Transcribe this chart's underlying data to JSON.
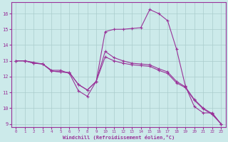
{
  "xlabel": "Windchill (Refroidissement éolien,°C)",
  "xlim": [
    -0.5,
    23.5
  ],
  "ylim": [
    8.8,
    16.7
  ],
  "yticks": [
    9,
    10,
    11,
    12,
    13,
    14,
    15,
    16
  ],
  "xticks": [
    0,
    1,
    2,
    3,
    4,
    5,
    6,
    7,
    8,
    9,
    10,
    11,
    12,
    13,
    14,
    15,
    16,
    17,
    18,
    19,
    20,
    21,
    22,
    23
  ],
  "background_color": "#cceaea",
  "line_color": "#993399",
  "grid_color": "#aacccc",
  "curve1_x": [
    0,
    1,
    2,
    3,
    4,
    5,
    6,
    7,
    8,
    9,
    10,
    11,
    12,
    13,
    14,
    15,
    16,
    17,
    18,
    19,
    20,
    21,
    22,
    23
  ],
  "curve1_y": [
    13.0,
    13.0,
    12.9,
    12.8,
    12.4,
    12.4,
    12.2,
    11.1,
    10.75,
    11.7,
    14.85,
    15.0,
    15.0,
    15.05,
    15.1,
    16.25,
    16.0,
    15.55,
    13.75,
    11.4,
    10.1,
    9.7,
    9.7,
    9.0
  ],
  "curve2_x": [
    0,
    1,
    2,
    3,
    4,
    5,
    6,
    7,
    8,
    9,
    10,
    11,
    12,
    13,
    14,
    15,
    16,
    17,
    18,
    19,
    20,
    21,
    22,
    23
  ],
  "curve2_y": [
    13.0,
    13.0,
    12.85,
    12.8,
    12.35,
    12.3,
    12.25,
    11.5,
    11.15,
    11.7,
    13.6,
    13.2,
    13.0,
    12.85,
    12.8,
    12.75,
    12.5,
    12.3,
    11.7,
    11.35,
    10.55,
    10.0,
    9.65,
    9.0
  ],
  "curve3_x": [
    0,
    1,
    2,
    3,
    4,
    5,
    6,
    7,
    8,
    9,
    10,
    11,
    12,
    13,
    14,
    15,
    16,
    17,
    18,
    19,
    20,
    21,
    22,
    23
  ],
  "curve3_y": [
    13.0,
    13.0,
    12.85,
    12.8,
    12.35,
    12.3,
    12.25,
    11.5,
    11.15,
    11.7,
    13.25,
    13.0,
    12.85,
    12.75,
    12.7,
    12.65,
    12.4,
    12.2,
    11.6,
    11.3,
    10.5,
    9.95,
    9.6,
    9.0
  ]
}
